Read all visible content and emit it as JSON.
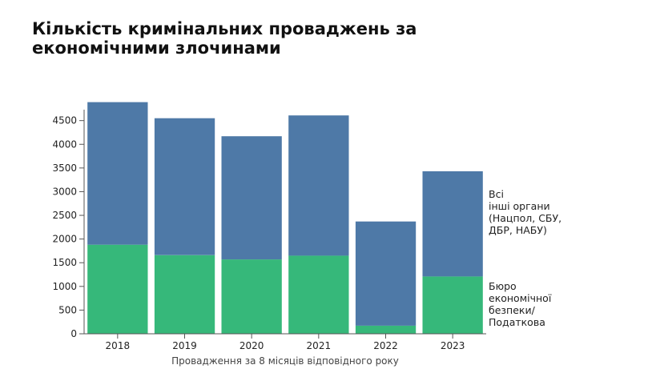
{
  "chart_data": {
    "type": "bar",
    "stacked": true,
    "title": "Кількість кримінальних проваджень за економічними злочинами",
    "xlabel": "Провадження за 8 місяців відповідного року",
    "ylabel": "",
    "categories": [
      "2018",
      "2019",
      "2020",
      "2021",
      "2022",
      "2023"
    ],
    "ylim": [
      0,
      4900
    ],
    "yticks": [
      0,
      500,
      1000,
      1500,
      2000,
      2500,
      3000,
      3500,
      4000,
      4500
    ],
    "series": [
      {
        "name": "Бюро економічної безпеки/ Податкова",
        "label_lines": [
          "Бюро",
          "економічної",
          "безпеки/",
          "Податкова"
        ],
        "color": "#36b87a",
        "values": [
          1880,
          1660,
          1570,
          1650,
          170,
          1210
        ]
      },
      {
        "name": "Всі інші органи (Нацпол, СБУ, ДБР, НАБУ)",
        "label_lines": [
          "Всі",
          "інші органи",
          "(Нацпол, СБУ,",
          "ДБР, НАБУ)"
        ],
        "color": "#4e79a7",
        "values": [
          3010,
          2890,
          2600,
          2960,
          2200,
          2220
        ]
      }
    ],
    "grid": false,
    "legend": "right, inline labels"
  }
}
